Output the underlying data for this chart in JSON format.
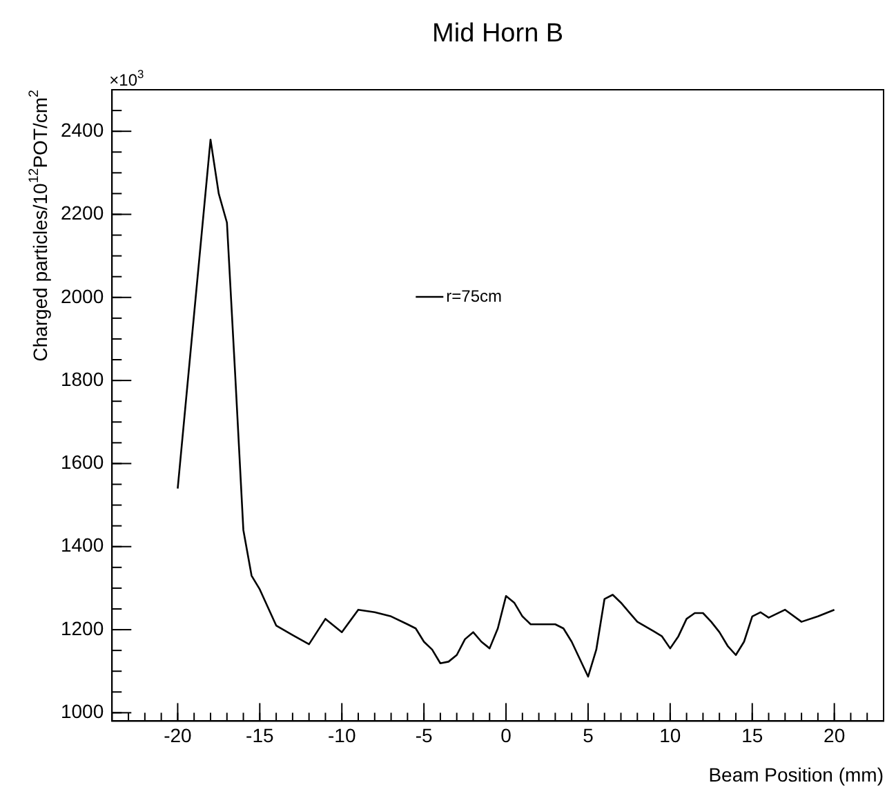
{
  "chart_data": {
    "type": "line",
    "title": "Mid Horn B",
    "xlabel": "Beam Position (mm)",
    "ylabel": "Charged particles/10$^{12}$POT/cm$^{2}$",
    "annotations": [
      "×10$^{3}$"
    ],
    "xlim": [
      -24,
      23
    ],
    "xticks": [
      -20,
      -15,
      -10,
      -5,
      0,
      5,
      10,
      15,
      20
    ],
    "ylim": [
      980,
      2500
    ],
    "yticks": [
      1000,
      1200,
      1400,
      1600,
      1800,
      2000,
      2200,
      2400
    ],
    "grid": false,
    "legend": "top left",
    "marker": "none",
    "line_style": "solid",
    "series": [
      {
        "name": "r=75cm",
        "color": "#000000",
        "x": [
          -20,
          -19,
          -18,
          -17.5,
          -17,
          -16.5,
          -16,
          -15.5,
          -15,
          -14,
          -13,
          -12,
          -11,
          -10,
          -9,
          -8,
          -7,
          -6,
          -5.5,
          -5,
          -4.5,
          -4,
          -3.5,
          -3,
          -2.5,
          -2,
          -1.5,
          -1,
          -0.5,
          0,
          0.5,
          1,
          1.5,
          2,
          3,
          3.5,
          4,
          4.5,
          5,
          5.5,
          6,
          6.5,
          7,
          7.5,
          8,
          9,
          9.5,
          10,
          10.5,
          11,
          11.5,
          12,
          12.5,
          13,
          13.5,
          14,
          14.5,
          15,
          15.5,
          16,
          17,
          18,
          19,
          19.5,
          20
        ],
        "values": [
          1540,
          1960,
          2380,
          2250,
          2180,
          1816,
          1440,
          1330,
          1297,
          1210,
          1187,
          1165,
          1226,
          1194,
          1248,
          1242,
          1232,
          1213,
          1203,
          1171,
          1152,
          1119,
          1123,
          1139,
          1177,
          1194,
          1171,
          1155,
          1203,
          1281,
          1265,
          1232,
          1213,
          1213,
          1213,
          1203,
          1171,
          1129,
          1087,
          1152,
          1274,
          1284,
          1265,
          1242,
          1219,
          1196,
          1184,
          1155,
          1184,
          1226,
          1240,
          1240,
          1219,
          1194,
          1161,
          1139,
          1171,
          1232,
          1242,
          1229,
          1248,
          1219,
          1232,
          1240,
          1248
        ]
      }
    ]
  }
}
